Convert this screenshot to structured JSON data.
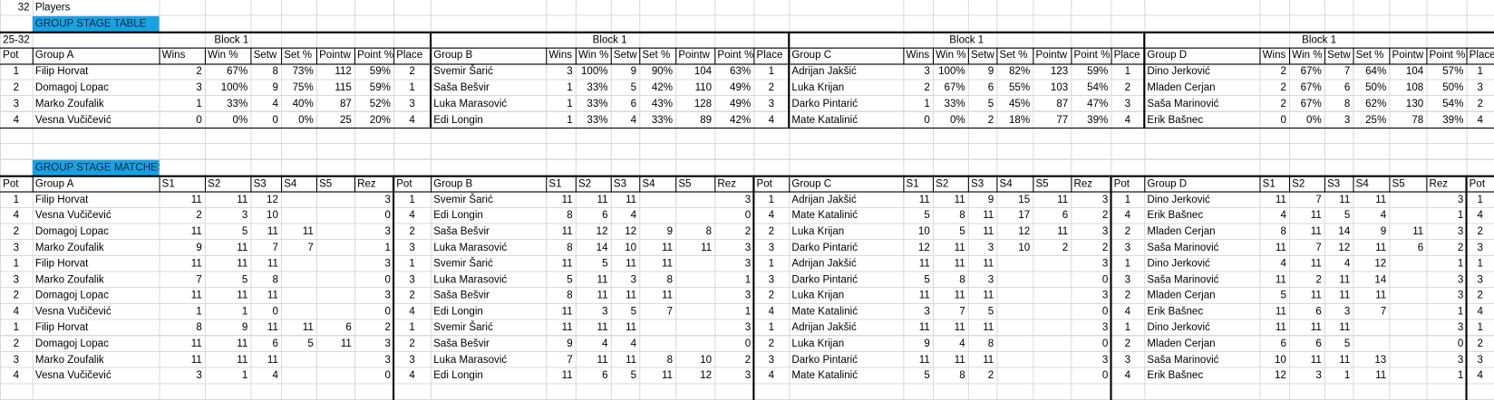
{
  "players": {
    "count": 32,
    "label": "Players"
  },
  "group_stage_table": {
    "title": "GROUP STAGE TABLE",
    "range_label": "25-32",
    "pot_header": "Pot",
    "pots": [
      1,
      2,
      3,
      4
    ],
    "groups": [
      {
        "block": "Block 1",
        "headers": [
          "Group A",
          "Wins",
          "Win %",
          "Setw",
          "Set %",
          "Pointw",
          "Point %",
          "Place"
        ],
        "rows": [
          [
            "Filip Horvat",
            2,
            "67%",
            8,
            "73%",
            112,
            "59%",
            2
          ],
          [
            "Domagoj Lopac",
            3,
            "100%",
            9,
            "75%",
            115,
            "59%",
            1
          ],
          [
            "Marko Zoufalik",
            1,
            "33%",
            4,
            "40%",
            87,
            "52%",
            3
          ],
          [
            "Vesna Vučičević",
            0,
            "0%",
            0,
            "0%",
            25,
            "20%",
            4
          ]
        ]
      },
      {
        "block": "Block 1",
        "headers": [
          "Group B",
          "Wins",
          "Win %",
          "Setw",
          "Set %",
          "Pointw",
          "Point %",
          "Place"
        ],
        "rows": [
          [
            "Svemir Šarić",
            3,
            "100%",
            9,
            "90%",
            104,
            "63%",
            1
          ],
          [
            "Saša Bešvir",
            1,
            "33%",
            5,
            "42%",
            110,
            "49%",
            2
          ],
          [
            "Luka Marasović",
            1,
            "33%",
            6,
            "43%",
            128,
            "49%",
            3
          ],
          [
            "Edi Longin",
            1,
            "33%",
            4,
            "33%",
            89,
            "42%",
            4
          ]
        ]
      },
      {
        "block": "Block 1",
        "headers": [
          "Group C",
          "Wins",
          "Win %",
          "Setw",
          "Set %",
          "Pointw",
          "Point %",
          "Place"
        ],
        "rows": [
          [
            "Adrijan Jakšić",
            3,
            "100%",
            9,
            "82%",
            123,
            "59%",
            1
          ],
          [
            "Luka Krijan",
            2,
            "67%",
            6,
            "55%",
            103,
            "54%",
            2
          ],
          [
            "Darko Pintarić",
            1,
            "33%",
            5,
            "45%",
            87,
            "47%",
            3
          ],
          [
            "Mate Katalinić",
            0,
            "0%",
            2,
            "18%",
            77,
            "39%",
            4
          ]
        ]
      },
      {
        "block": "Block 1",
        "headers": [
          "Group D",
          "Wins",
          "Win %",
          "Setw",
          "Set %",
          "Pointw",
          "Point %",
          "Place"
        ],
        "rows": [
          [
            "Dino Jerković",
            2,
            "67%",
            7,
            "64%",
            104,
            "57%",
            1
          ],
          [
            "Mladen Cerjan",
            2,
            "67%",
            6,
            "50%",
            108,
            "50%",
            3
          ],
          [
            "Saša Marinović",
            2,
            "67%",
            8,
            "62%",
            130,
            "54%",
            2
          ],
          [
            "Erik Bašnec",
            0,
            "0%",
            3,
            "25%",
            78,
            "39%",
            4
          ]
        ]
      }
    ]
  },
  "group_stage_matches": {
    "title": "GROUP STAGE MATCHES",
    "groups": [
      {
        "headers": [
          "Pot",
          "Group A",
          "S1",
          "S2",
          "S3",
          "S4",
          "S5",
          "Rez"
        ],
        "rows": [
          {
            "pot": 1,
            "name": "Filip Horvat",
            "sets": [
              11,
              11,
              12
            ],
            "result": 3
          },
          {
            "pot": 4,
            "name": "Vesna Vučičević",
            "sets": [
              2,
              3,
              10
            ],
            "result": 0
          },
          {
            "pot": 2,
            "name": "Domagoj Lopac",
            "sets": [
              11,
              5,
              11,
              11
            ],
            "result": 3
          },
          {
            "pot": 3,
            "name": "Marko Zoufalik",
            "sets": [
              9,
              11,
              7,
              7
            ],
            "result": 1
          },
          {
            "pot": 1,
            "name": "Filip Horvat",
            "sets": [
              11,
              11,
              11
            ],
            "result": 3
          },
          {
            "pot": 3,
            "name": "Marko Zoufalik",
            "sets": [
              7,
              5,
              8
            ],
            "result": 0
          },
          {
            "pot": 2,
            "name": "Domagoj Lopac",
            "sets": [
              11,
              11,
              11
            ],
            "result": 3
          },
          {
            "pot": 4,
            "name": "Vesna Vučičević",
            "sets": [
              1,
              1,
              0
            ],
            "result": 0
          },
          {
            "pot": 1,
            "name": "Filip Horvat",
            "sets": [
              8,
              9,
              11,
              11,
              6
            ],
            "result": 2
          },
          {
            "pot": 2,
            "name": "Domagoj Lopac",
            "sets": [
              11,
              11,
              6,
              5,
              11
            ],
            "result": 3
          },
          {
            "pot": 3,
            "name": "Marko Zoufalik",
            "sets": [
              11,
              11,
              11
            ],
            "result": 3
          },
          {
            "pot": 4,
            "name": "Vesna Vučičević",
            "sets": [
              3,
              1,
              4
            ],
            "result": 0
          }
        ]
      },
      {
        "headers": [
          "Pot",
          "Group B",
          "S1",
          "S2",
          "S3",
          "S4",
          "S5",
          "Rez"
        ],
        "rows": [
          {
            "pot": 1,
            "name": "Svemir Šarić",
            "sets": [
              11,
              11,
              11
            ],
            "result": 3
          },
          {
            "pot": 4,
            "name": "Edi Longin",
            "sets": [
              8,
              6,
              4
            ],
            "result": 0
          },
          {
            "pot": 2,
            "name": "Saša Bešvir",
            "sets": [
              11,
              12,
              12,
              9,
              8
            ],
            "result": 2
          },
          {
            "pot": 3,
            "name": "Luka Marasović",
            "sets": [
              8,
              14,
              10,
              11,
              11
            ],
            "result": 3
          },
          {
            "pot": 1,
            "name": "Svemir Šarić",
            "sets": [
              11,
              5,
              11,
              11
            ],
            "result": 3
          },
          {
            "pot": 3,
            "name": "Luka Marasović",
            "sets": [
              5,
              11,
              3,
              8
            ],
            "result": 1
          },
          {
            "pot": 2,
            "name": "Saša Bešvir",
            "sets": [
              8,
              11,
              11,
              11
            ],
            "result": 3
          },
          {
            "pot": 4,
            "name": "Edi Longin",
            "sets": [
              11,
              3,
              5,
              7
            ],
            "result": 1
          },
          {
            "pot": 1,
            "name": "Svemir Šarić",
            "sets": [
              11,
              11,
              11
            ],
            "result": 3
          },
          {
            "pot": 2,
            "name": "Saša Bešvir",
            "sets": [
              9,
              4,
              4
            ],
            "result": 0
          },
          {
            "pot": 3,
            "name": "Luka Marasović",
            "sets": [
              7,
              11,
              11,
              8,
              10
            ],
            "result": 2
          },
          {
            "pot": 4,
            "name": "Edi Longin",
            "sets": [
              11,
              6,
              5,
              11,
              12
            ],
            "result": 3
          }
        ]
      },
      {
        "headers": [
          "Pot",
          "Group C",
          "S1",
          "S2",
          "S3",
          "S4",
          "S5",
          "Rez"
        ],
        "rows": [
          {
            "pot": 1,
            "name": "Adrijan Jakšić",
            "sets": [
              11,
              11,
              9,
              15,
              11
            ],
            "result": 3
          },
          {
            "pot": 4,
            "name": "Mate Katalinić",
            "sets": [
              5,
              8,
              11,
              17,
              6
            ],
            "result": 2
          },
          {
            "pot": 2,
            "name": "Luka Krijan",
            "sets": [
              10,
              5,
              11,
              12,
              11
            ],
            "result": 3
          },
          {
            "pot": 3,
            "name": "Darko Pintarić",
            "sets": [
              12,
              11,
              3,
              10,
              2
            ],
            "result": 2
          },
          {
            "pot": 1,
            "name": "Adrijan Jakšić",
            "sets": [
              11,
              11,
              11
            ],
            "result": 3
          },
          {
            "pot": 3,
            "name": "Darko Pintarić",
            "sets": [
              5,
              8,
              3
            ],
            "result": 0
          },
          {
            "pot": 2,
            "name": "Luka Krijan",
            "sets": [
              11,
              11,
              11
            ],
            "result": 3
          },
          {
            "pot": 4,
            "name": "Mate Katalinić",
            "sets": [
              3,
              7,
              5
            ],
            "result": 0
          },
          {
            "pot": 1,
            "name": "Adrijan Jakšić",
            "sets": [
              11,
              11,
              11
            ],
            "result": 3
          },
          {
            "pot": 2,
            "name": "Luka Krijan",
            "sets": [
              9,
              4,
              8
            ],
            "result": 0
          },
          {
            "pot": 3,
            "name": "Darko Pintarić",
            "sets": [
              11,
              11,
              11
            ],
            "result": 3
          },
          {
            "pot": 4,
            "name": "Mate Katalinić",
            "sets": [
              5,
              8,
              2
            ],
            "result": 0
          }
        ]
      },
      {
        "headers": [
          "Pot",
          "Group D",
          "S1",
          "S2",
          "S3",
          "S4",
          "S5",
          "Rez"
        ],
        "rows": [
          {
            "pot": 1,
            "name": "Dino Jerković",
            "sets": [
              11,
              7,
              11,
              11
            ],
            "result": 3
          },
          {
            "pot": 4,
            "name": "Erik Bašnec",
            "sets": [
              4,
              11,
              5,
              4
            ],
            "result": 1
          },
          {
            "pot": 2,
            "name": "Mladen Cerjan",
            "sets": [
              8,
              11,
              14,
              9,
              11
            ],
            "result": 3
          },
          {
            "pot": 3,
            "name": "Saša Marinović",
            "sets": [
              11,
              7,
              12,
              11,
              6
            ],
            "result": 2
          },
          {
            "pot": 1,
            "name": "Dino Jerković",
            "sets": [
              4,
              11,
              4,
              12
            ],
            "result": 1
          },
          {
            "pot": 3,
            "name": "Saša Marinović",
            "sets": [
              11,
              2,
              11,
              14
            ],
            "result": 3
          },
          {
            "pot": 2,
            "name": "Mladen Cerjan",
            "sets": [
              5,
              11,
              11,
              11
            ],
            "result": 3
          },
          {
            "pot": 4,
            "name": "Erik Bašnec",
            "sets": [
              11,
              6,
              3,
              7
            ],
            "result": 1
          },
          {
            "pot": 1,
            "name": "Dino Jerković",
            "sets": [
              11,
              11,
              11
            ],
            "result": 3
          },
          {
            "pot": 2,
            "name": "Mladen Cerjan",
            "sets": [
              6,
              6,
              5
            ],
            "result": 0
          },
          {
            "pot": 3,
            "name": "Saša Marinović",
            "sets": [
              10,
              11,
              11,
              13
            ],
            "result": 3
          },
          {
            "pot": 4,
            "name": "Erik Bašnec",
            "sets": [
              12,
              3,
              1,
              11
            ],
            "result": 1
          }
        ]
      }
    ],
    "next_group": {
      "header": "Pot",
      "pots": [
        1,
        4,
        2,
        3,
        1,
        3,
        2,
        4,
        1,
        2,
        3,
        4
      ]
    }
  }
}
